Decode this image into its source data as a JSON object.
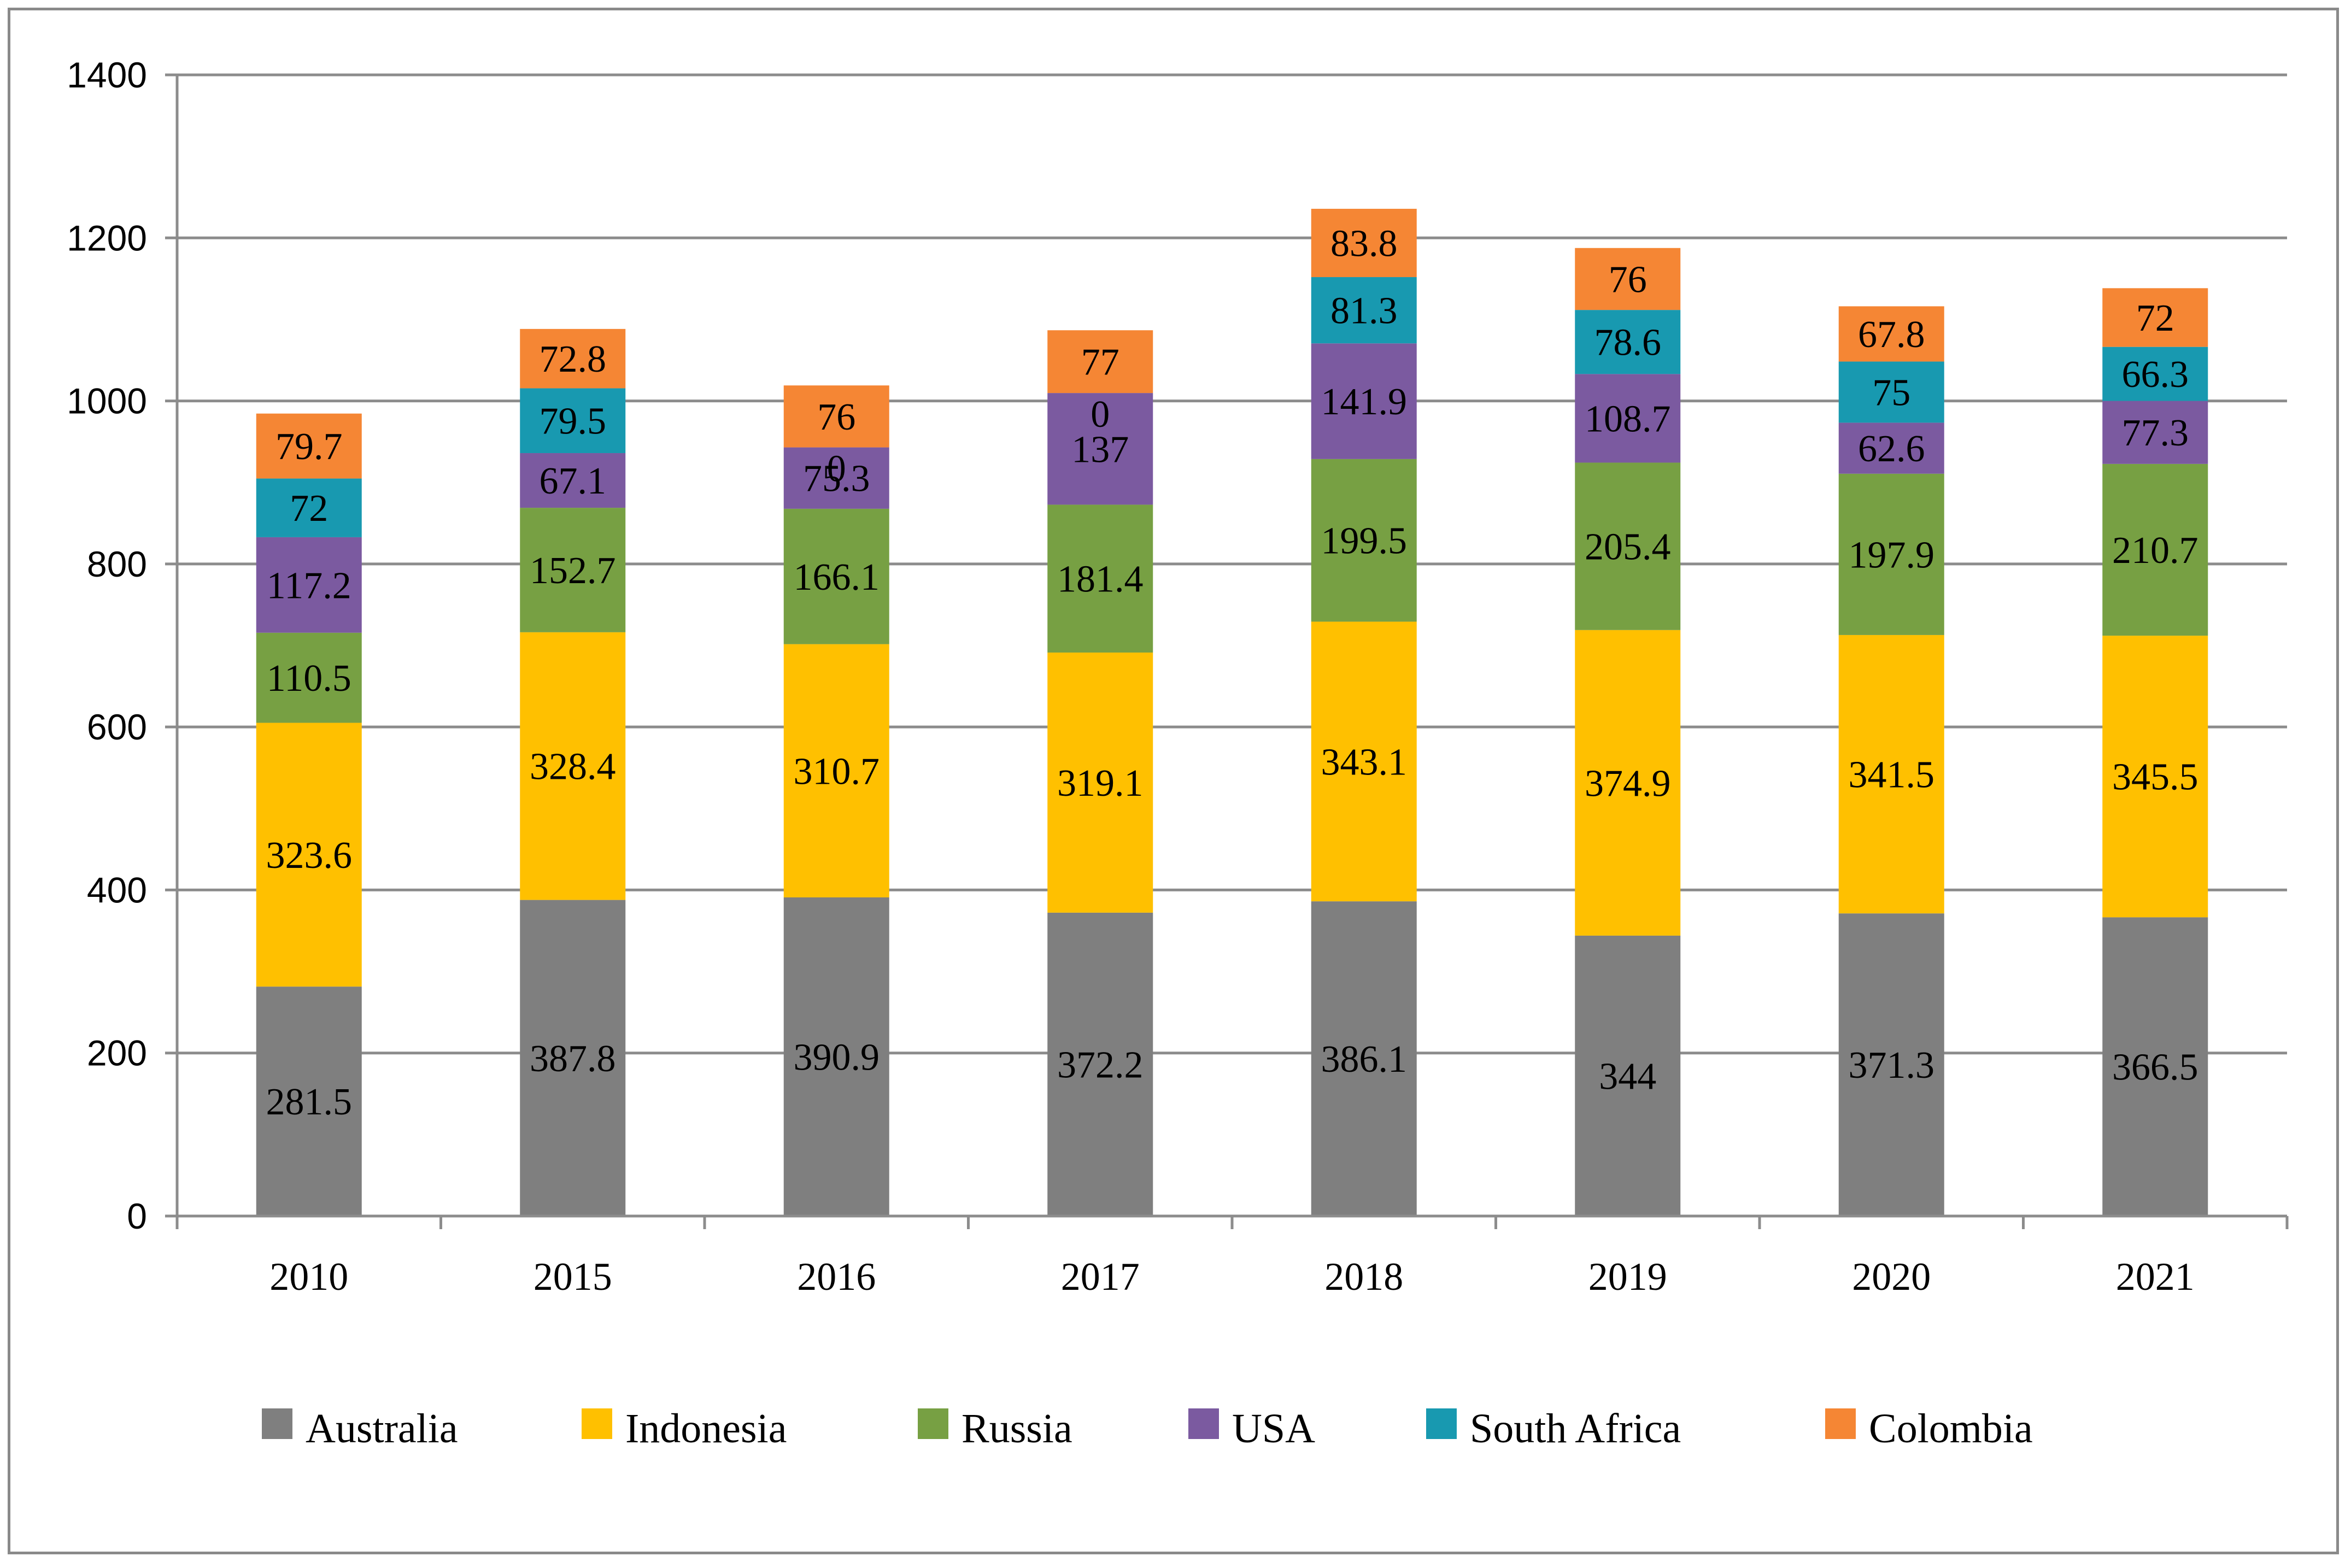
{
  "chart_data": {
    "type": "bar",
    "stacked": true,
    "title": "",
    "xlabel": "",
    "ylabel": "",
    "ylim": [
      0,
      1400
    ],
    "yticks": [
      0,
      200,
      400,
      600,
      800,
      1000,
      1200,
      1400
    ],
    "grid": true,
    "legend_position": "bottom",
    "categories": [
      "2010",
      "2015",
      "2016",
      "2017",
      "2018",
      "2019",
      "2020",
      "2021"
    ],
    "series": [
      {
        "name": "Australia",
        "color": "#7f7f7f",
        "values": [
          281.5,
          387.8,
          390.9,
          372.2,
          386.1,
          344,
          371.3,
          366.5
        ]
      },
      {
        "name": "Indonesia",
        "color": "#ffc000",
        "values": [
          323.6,
          328.4,
          310.7,
          319.1,
          343.1,
          374.9,
          341.5,
          345.5
        ]
      },
      {
        "name": "Russia",
        "color": "#77a043",
        "values": [
          110.5,
          152.7,
          166.1,
          181.4,
          199.5,
          205.4,
          197.9,
          210.7
        ]
      },
      {
        "name": "USA",
        "color": "#7b5aa0",
        "values": [
          117.2,
          67.1,
          75.3,
          137,
          141.9,
          108.7,
          62.6,
          77.3
        ]
      },
      {
        "name": "South Africa",
        "color": "#1899b0",
        "values": [
          72,
          79.5,
          0,
          0,
          81.3,
          78.6,
          75,
          66.3
        ]
      },
      {
        "name": "Colombia",
        "color": "#f58634",
        "values": [
          79.7,
          72.8,
          76,
          77,
          83.8,
          76,
          67.8,
          72
        ]
      }
    ]
  }
}
